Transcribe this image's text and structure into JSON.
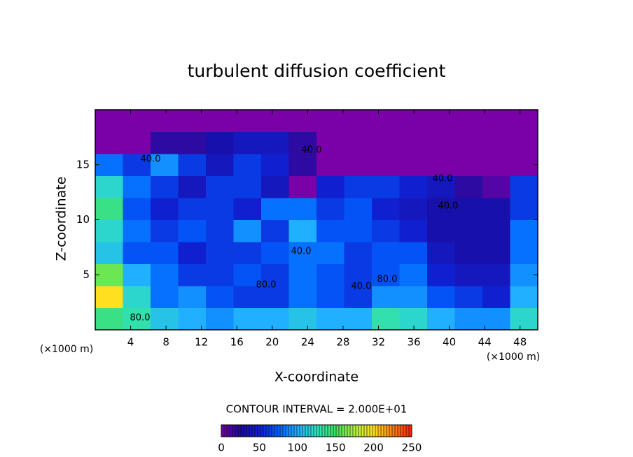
{
  "chart_data": {
    "type": "contour",
    "title": "turbulent diffusion coefficient",
    "x_label": "X-coordinate",
    "y_label": "Z-coordinate",
    "x_unit": "(×1000 m)",
    "y_unit": "(×1000 m)",
    "contour_interval": "CONTOUR INTERVAL = 2.000E+01",
    "xlim": [
      0,
      50
    ],
    "ylim": [
      0,
      20
    ],
    "xticks": [
      4,
      8,
      12,
      16,
      20,
      24,
      28,
      32,
      36,
      40,
      44,
      48
    ],
    "yticks": [
      5,
      10,
      15
    ],
    "z": [
      [
        140,
        130,
        110,
        100,
        90,
        100,
        100,
        110,
        100,
        100,
        130,
        120,
        100,
        90,
        90,
        120
      ],
      [
        200,
        120,
        80,
        90,
        70,
        60,
        60,
        80,
        70,
        60,
        90,
        90,
        70,
        60,
        50,
        100
      ],
      [
        160,
        100,
        80,
        60,
        60,
        70,
        60,
        80,
        70,
        60,
        70,
        80,
        50,
        40,
        40,
        90
      ],
      [
        110,
        70,
        70,
        50,
        60,
        60,
        70,
        80,
        80,
        60,
        70,
        70,
        40,
        30,
        30,
        80
      ],
      [
        120,
        80,
        60,
        70,
        60,
        90,
        60,
        100,
        70,
        70,
        60,
        50,
        30,
        30,
        30,
        80
      ],
      [
        140,
        70,
        50,
        60,
        60,
        50,
        80,
        80,
        60,
        70,
        50,
        40,
        30,
        30,
        30,
        60
      ],
      [
        120,
        80,
        60,
        40,
        60,
        60,
        40,
        0,
        50,
        60,
        60,
        50,
        40,
        20,
        10,
        60
      ],
      [
        80,
        60,
        90,
        60,
        40,
        60,
        50,
        20,
        0,
        0,
        0,
        0,
        0,
        0,
        0,
        0
      ],
      [
        0,
        0,
        20,
        20,
        30,
        40,
        40,
        20,
        0,
        0,
        0,
        0,
        0,
        0,
        0,
        0
      ],
      [
        0,
        0,
        0,
        0,
        0,
        0,
        0,
        0,
        0,
        0,
        0,
        0,
        0,
        0,
        0,
        0
      ]
    ],
    "zlim": [
      0,
      250
    ],
    "colors": [
      "#7a00a8",
      "#1a0ca0",
      "#1020d0",
      "#0060ff",
      "#20b0ff",
      "#30e0c0",
      "#40e060",
      "#b0f040",
      "#ffe020",
      "#ff8010",
      "#ff2000"
    ],
    "colorbar_ticks": [
      0,
      50,
      100,
      150,
      200,
      250
    ],
    "contour_labels": [
      "40.0",
      "40.0",
      "40.0",
      "40.0",
      "40.0",
      "40.0",
      "80.0",
      "80.0",
      "80.0"
    ]
  }
}
